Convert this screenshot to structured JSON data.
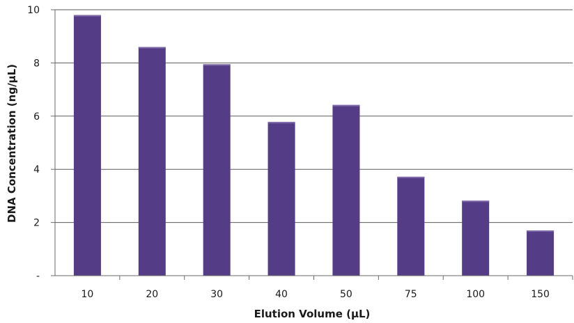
{
  "chart_data": {
    "type": "bar",
    "categories": [
      "10",
      "20",
      "30",
      "40",
      "50",
      "75",
      "100",
      "150"
    ],
    "values": [
      9.8,
      8.6,
      7.95,
      5.78,
      6.42,
      3.72,
      2.82,
      1.7
    ],
    "xlabel": "Elution Volume (µL)",
    "ylabel": "DNA Concentration (ng/µL)",
    "ylim": [
      0,
      10
    ],
    "yticks": [
      0,
      2,
      4,
      6,
      8,
      10
    ],
    "ytick_labels": [
      "-",
      "2",
      "4",
      "6",
      "8",
      "10"
    ],
    "grid": true,
    "legend": "none",
    "bar_color": "#553c86",
    "bar_highlight": "#7d68a8"
  }
}
